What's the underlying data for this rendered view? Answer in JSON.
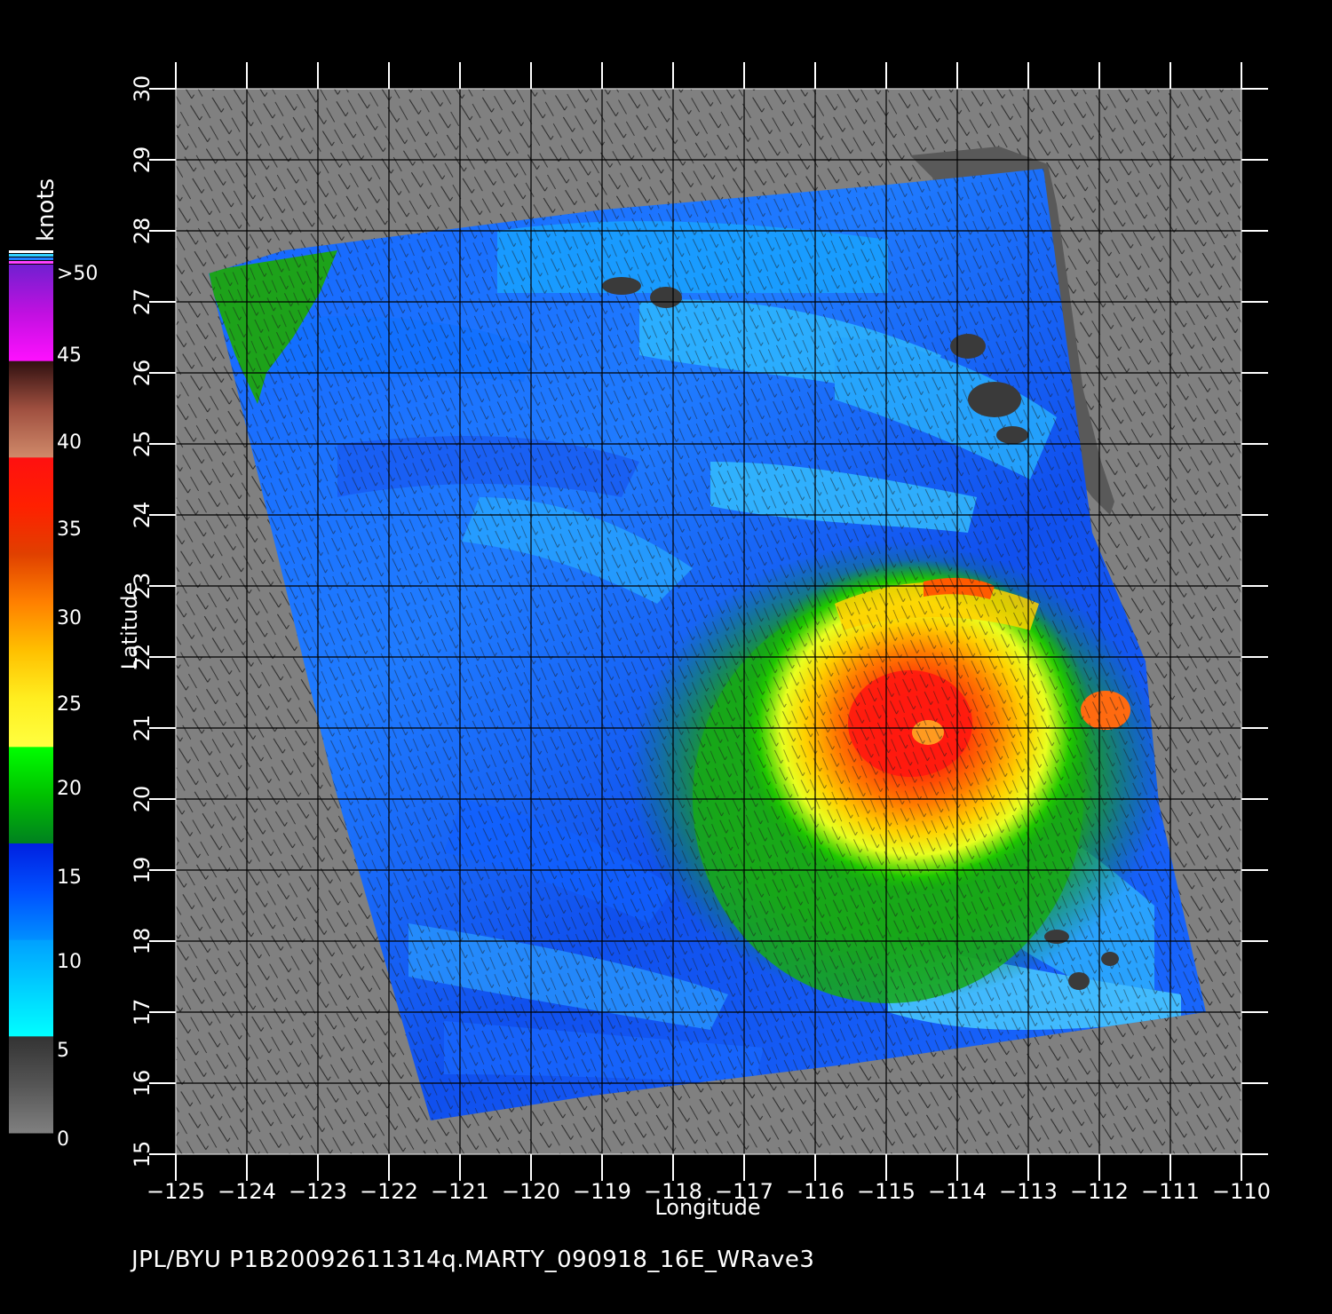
{
  "colorbar": {
    "unit": "knots",
    "labels": [
      ">50",
      "45",
      "40",
      "35",
      "30",
      "25",
      "20",
      "15",
      "10",
      "5",
      "0"
    ],
    "stops": [
      {
        "from": 50,
        "to": 40,
        "colors": [
          "#7020d0",
          "#c010e0",
          "#ff10ff"
        ]
      },
      {
        "from": 40,
        "to": 35,
        "colors": [
          "#301010",
          "#a05040",
          "#d08a6a"
        ]
      },
      {
        "from": 35,
        "to": 30,
        "colors": [
          "#ff1010",
          "#ff2000",
          "#e04000"
        ]
      },
      {
        "from": 30,
        "to": 25,
        "colors": [
          "#e04000",
          "#ff8000",
          "#ffc000"
        ]
      },
      {
        "from": 25,
        "to": 20,
        "colors": [
          "#ffc000",
          "#ffee20",
          "#ffff40"
        ]
      },
      {
        "from": 20,
        "to": 15,
        "colors": [
          "#00ff00",
          "#00c000",
          "#008020"
        ]
      },
      {
        "from": 15,
        "to": 10,
        "colors": [
          "#0020e0",
          "#0050ff",
          "#0090ff"
        ]
      },
      {
        "from": 10,
        "to": 5,
        "colors": [
          "#00a0ff",
          "#00d0ff",
          "#00ffff"
        ]
      },
      {
        "from": 5,
        "to": 0,
        "colors": [
          "#333333",
          "#555555",
          "#808080"
        ]
      }
    ]
  },
  "axes": {
    "xlabel": "Longitude",
    "ylabel": "Latitude",
    "xlim": [
      -125,
      -110
    ],
    "ylim": [
      15,
      30
    ],
    "xticks": [
      "−125",
      "−124",
      "−123",
      "−122",
      "−121",
      "−120",
      "−119",
      "−118",
      "−117",
      "−116",
      "−115",
      "−114",
      "−113",
      "−112",
      "−111",
      "−110"
    ],
    "yticks": [
      "15",
      "16",
      "17",
      "18",
      "19",
      "20",
      "21",
      "22",
      "23",
      "24",
      "25",
      "26",
      "27",
      "28",
      "29",
      "30"
    ],
    "grid": true
  },
  "swath": {
    "corners_lonlat": [
      [
        -124.5,
        27.4
      ],
      [
        -110.5,
        16.95
      ],
      [
        -111.6,
        28.6
      ],
      [
        -121.5,
        15.5
      ]
    ]
  },
  "storm": {
    "center_lonlat": [
      -114.4,
      21.0
    ],
    "max_wind_knots": 35
  },
  "colors": {
    "land": "#595959",
    "no_data": "#808080",
    "background": "#000000",
    "grid": "#000000"
  },
  "footer": {
    "text": "JPL/BYU  P1B20092611314q.MARTY_090918_16E_WRave3"
  }
}
